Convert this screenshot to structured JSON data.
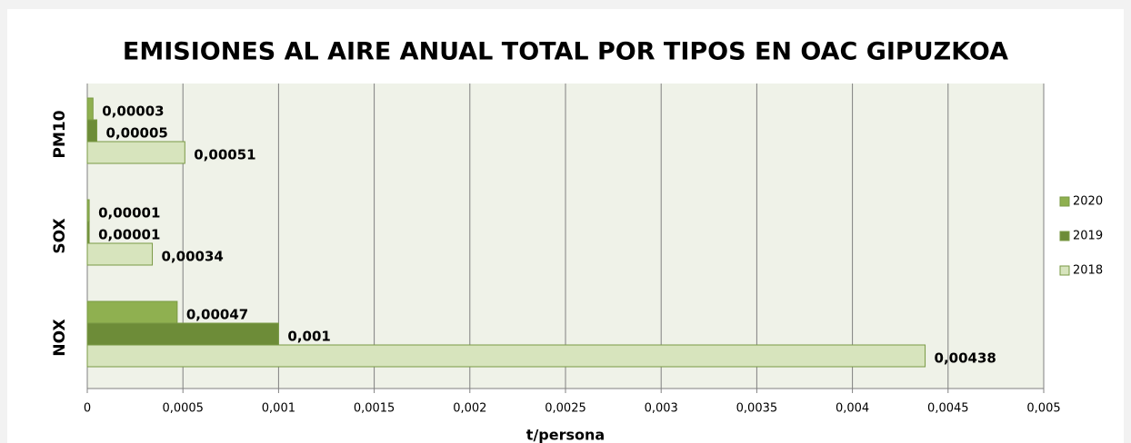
{
  "chart_data": {
    "type": "hbar",
    "title": "EMISIONES AL AIRE ANUAL TOTAL POR TIPOS EN OAC GIPUZKOA",
    "x_label": "t/persona",
    "categories": [
      "NOX",
      "SOX",
      "PM10"
    ],
    "series": [
      {
        "name": "2020",
        "color": "#8fb050",
        "values": [
          0.00047,
          1e-05,
          3e-05
        ],
        "value_labels": [
          "0,00047",
          "0,00001",
          "0,00003"
        ]
      },
      {
        "name": "2019",
        "color": "#6d8c38",
        "values": [
          0.001,
          1e-05,
          5e-05
        ],
        "value_labels": [
          "0,001",
          "0,00001",
          "0,00005"
        ]
      },
      {
        "name": "2018",
        "color": "#d7e4bd",
        "values": [
          0.00438,
          0.00034,
          0.00051
        ],
        "value_labels": [
          "0,00438",
          "0,00034",
          "0,00051"
        ]
      }
    ],
    "xlim": [
      0,
      0.005
    ],
    "xticks": [
      0,
      {
        "value": 0.0005,
        "label": "0,0005"
      },
      {
        "value": 0.001,
        "label": "0,001"
      },
      {
        "value": 0.0015,
        "label": "0,0015"
      },
      {
        "value": 0.002,
        "label": "0,002"
      },
      {
        "value": 0.0025,
        "label": "0,0025"
      },
      {
        "value": 0.003,
        "label": "0,003"
      },
      {
        "value": 0.0035,
        "label": "0,0035"
      },
      {
        "value": 0.004,
        "label": "0,004"
      },
      {
        "value": 0.0045,
        "label": "0,0045"
      },
      {
        "value": 0.005,
        "label": "0,005"
      }
    ],
    "grid": true,
    "legend": "right"
  }
}
